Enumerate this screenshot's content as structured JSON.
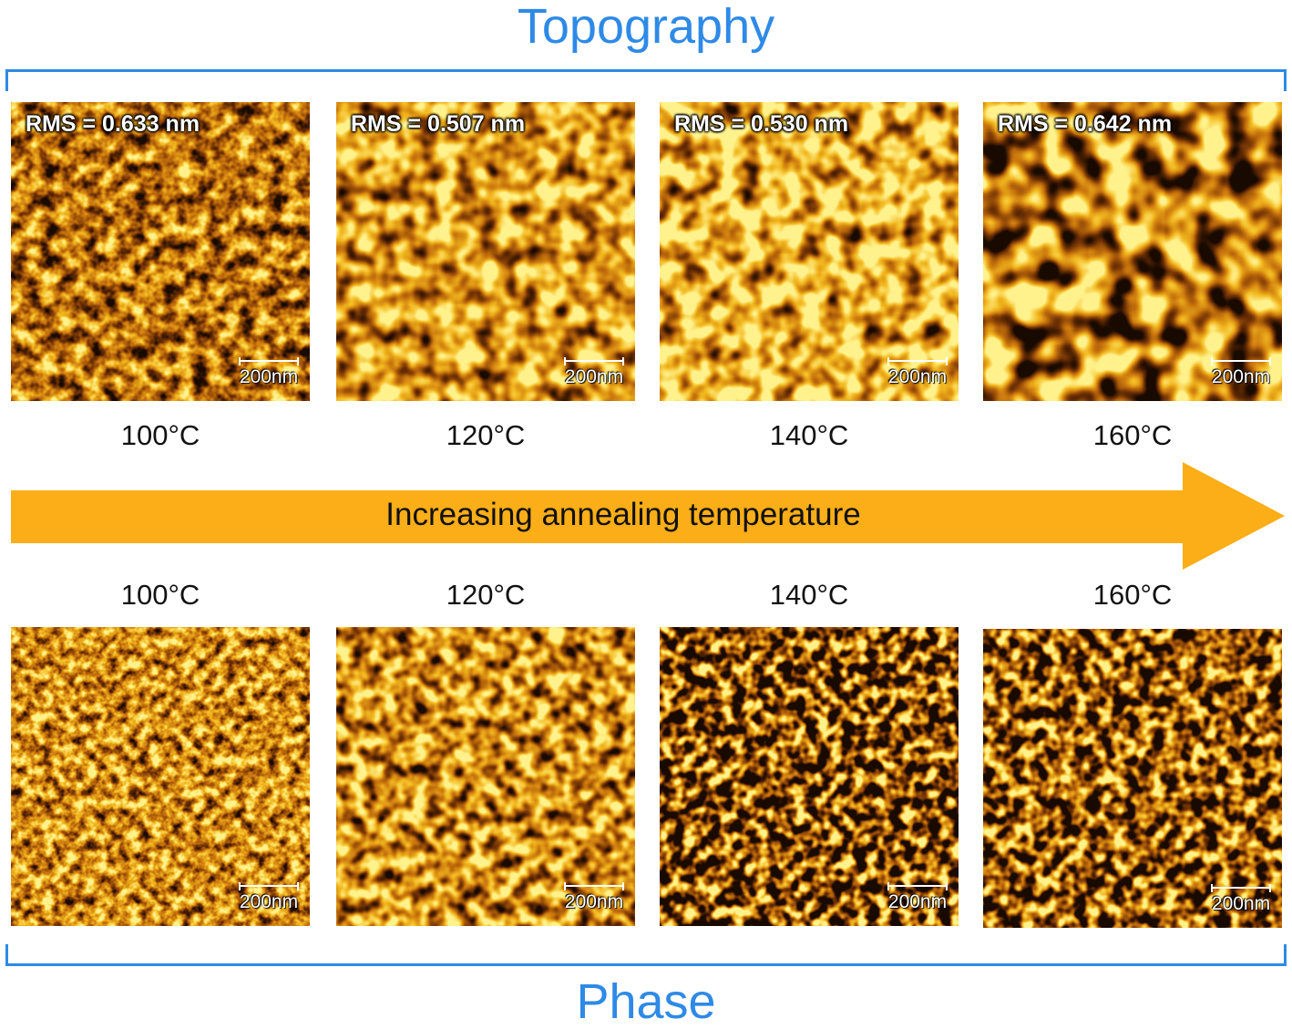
{
  "topography": {
    "title": "Topography",
    "panels": [
      {
        "rms": "RMS = 0.633 nm",
        "temp": "100°C",
        "scale": "200nm"
      },
      {
        "rms": "RMS = 0.507 nm",
        "temp": "120°C",
        "scale": "200nm"
      },
      {
        "rms": "RMS = 0.530 nm",
        "temp": "140°C",
        "scale": "200nm"
      },
      {
        "rms": "RMS = 0.642 nm",
        "temp": "160°C",
        "scale": "200nm"
      }
    ]
  },
  "arrow": {
    "label": "Increasing annealing temperature",
    "color": "#fbae17"
  },
  "phase": {
    "title": "Phase",
    "panels": [
      {
        "temp": "100°C",
        "scale": "200nm"
      },
      {
        "temp": "120°C",
        "scale": "200nm"
      },
      {
        "temp": "140°C",
        "scale": "200nm"
      },
      {
        "temp": "160°C",
        "scale": "200nm"
      }
    ]
  },
  "colors": {
    "accent": "#2e8ae6",
    "afm_dark": "#2a1000",
    "afm_mid": "#b8720a",
    "afm_bright": "#fff38a"
  }
}
